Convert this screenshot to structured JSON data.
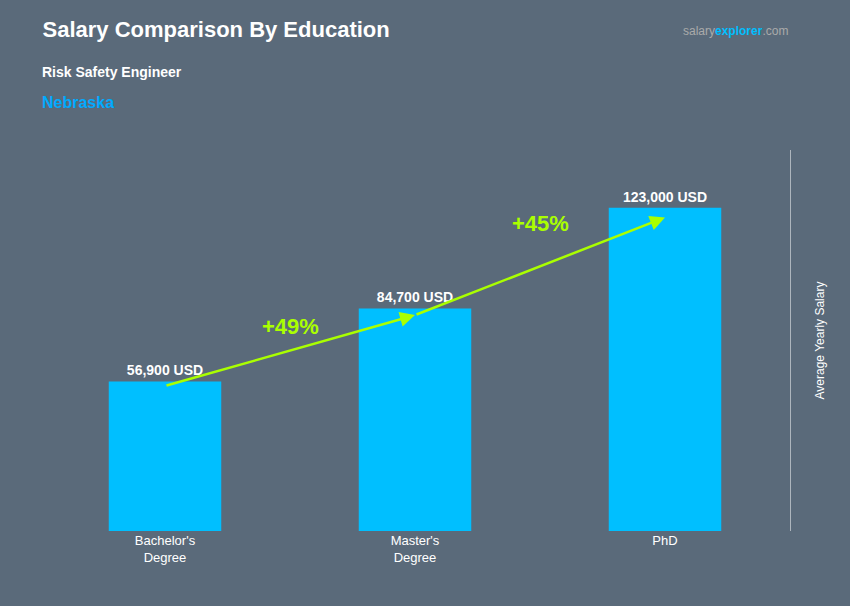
{
  "chart_data": {
    "type": "bar",
    "title": "Salary Comparison By Education",
    "subtitle": "Risk Safety Engineer",
    "location": {
      "text": "Nebraska",
      "color": "#00aaff"
    },
    "source": [
      {
        "text": "salary",
        "color": "#aaaaaa"
      },
      {
        "text": "explorer",
        "color": "#00bfff"
      },
      {
        "text": ".com",
        "color": "#aaaaaa"
      }
    ],
    "ylabel": "Average Yearly Salary",
    "categories": [
      "Bachelor's\nDegree",
      "Master's\nDegree",
      "PhD"
    ],
    "values": [
      56900,
      84700,
      123000
    ],
    "value_labels": [
      "56,900 USD",
      "84,700 USD",
      "123,000 USD"
    ],
    "data_labels": true,
    "color": "#00bfff",
    "annotations": [
      {
        "text": "+49%",
        "color": "#aaff00"
      },
      {
        "text": "+45%",
        "color": "#aaff00"
      }
    ],
    "ylim": [
      0,
      145000
    ],
    "grid": false,
    "tick_labels": "x"
  }
}
